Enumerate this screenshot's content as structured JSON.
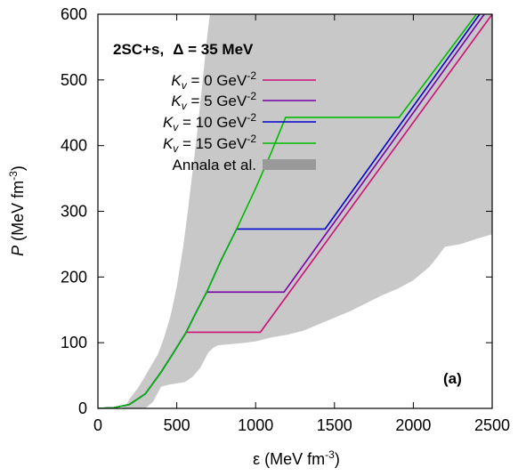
{
  "chart_data": {
    "type": "line",
    "title_model": "2SC+s,",
    "title_delta": "Δ = 35 MeV",
    "panel_label": "(a)",
    "xlabel": "ε (MeV fm",
    "xlabel_sup": "-3",
    "xlabel_close": ")",
    "ylabel_var": "P",
    "ylabel_rest": " (MeV fm",
    "ylabel_sup": "-3",
    "ylabel_close": ")",
    "xlim": [
      0,
      2500
    ],
    "ylim": [
      0,
      600
    ],
    "xticks": [
      "0",
      "500",
      "1000",
      "1500",
      "2000",
      "2500"
    ],
    "yticks": [
      "0",
      "100",
      "200",
      "300",
      "400",
      "500",
      "600"
    ],
    "band": {
      "name": "Annala et al.",
      "color": "#c8c8c8",
      "upper": [
        [
          150,
          0
        ],
        [
          180,
          5
        ],
        [
          200,
          14
        ],
        [
          250,
          30
        ],
        [
          290,
          45
        ],
        [
          330,
          62
        ],
        [
          380,
          82
        ],
        [
          420,
          108
        ],
        [
          460,
          140
        ],
        [
          500,
          185
        ],
        [
          540,
          245
        ],
        [
          570,
          300
        ],
        [
          600,
          360
        ],
        [
          630,
          420
        ],
        [
          660,
          490
        ],
        [
          690,
          560
        ],
        [
          710,
          600
        ]
      ],
      "lower": [
        [
          2500,
          265
        ],
        [
          2400,
          258
        ],
        [
          2300,
          250
        ],
        [
          2200,
          246
        ],
        [
          2150,
          230
        ],
        [
          2100,
          215
        ],
        [
          2000,
          195
        ],
        [
          1900,
          182
        ],
        [
          1800,
          172
        ],
        [
          1700,
          160
        ],
        [
          1600,
          148
        ],
        [
          1500,
          138
        ],
        [
          1400,
          128
        ],
        [
          1300,
          118
        ],
        [
          1200,
          112
        ],
        [
          1100,
          108
        ],
        [
          1000,
          102
        ],
        [
          900,
          99
        ],
        [
          800,
          97
        ],
        [
          760,
          96
        ],
        [
          730,
          92
        ],
        [
          700,
          85
        ],
        [
          650,
          62
        ],
        [
          600,
          48
        ],
        [
          550,
          40
        ],
        [
          500,
          38
        ],
        [
          450,
          36
        ],
        [
          400,
          33
        ],
        [
          350,
          10
        ],
        [
          300,
          0
        ]
      ]
    },
    "series": [
      {
        "name": "K",
        "sub": "v",
        "value": " = 0 GeV",
        "sup": "-2",
        "color": "#cc1177",
        "points": [
          [
            0,
            0
          ],
          [
            100,
            1
          ],
          [
            200,
            6
          ],
          [
            300,
            22
          ],
          [
            400,
            55
          ],
          [
            480,
            85
          ],
          [
            560,
            116
          ],
          [
            1030,
            116
          ],
          [
            2500,
            600
          ]
        ]
      },
      {
        "name": "K",
        "sub": "v",
        "value": " = 5 GeV",
        "sup": "-2",
        "color": "#7700aa",
        "points": [
          [
            0,
            0
          ],
          [
            100,
            1
          ],
          [
            200,
            6
          ],
          [
            300,
            22
          ],
          [
            400,
            55
          ],
          [
            480,
            85
          ],
          [
            560,
            116
          ],
          [
            620,
            145
          ],
          [
            690,
            177
          ],
          [
            1180,
            177
          ],
          [
            2450,
            600
          ]
        ]
      },
      {
        "name": "K",
        "sub": "v",
        "value": " = 10 GeV",
        "sup": "-2",
        "color": "#0000cc",
        "points": [
          [
            0,
            0
          ],
          [
            100,
            1
          ],
          [
            200,
            6
          ],
          [
            300,
            22
          ],
          [
            400,
            55
          ],
          [
            480,
            85
          ],
          [
            560,
            116
          ],
          [
            620,
            145
          ],
          [
            690,
            177
          ],
          [
            780,
            225
          ],
          [
            880,
            273
          ],
          [
            1440,
            273
          ],
          [
            2420,
            600
          ]
        ]
      },
      {
        "name": "K",
        "sub": "v",
        "value": " = 15 GeV",
        "sup": "-2",
        "color": "#00bb00",
        "points": [
          [
            0,
            0
          ],
          [
            100,
            1
          ],
          [
            200,
            6
          ],
          [
            300,
            22
          ],
          [
            400,
            55
          ],
          [
            480,
            85
          ],
          [
            560,
            116
          ],
          [
            620,
            145
          ],
          [
            690,
            177
          ],
          [
            780,
            225
          ],
          [
            880,
            273
          ],
          [
            1000,
            335
          ],
          [
            1100,
            390
          ],
          [
            1190,
            443
          ],
          [
            1910,
            443
          ],
          [
            2400,
            600
          ]
        ]
      }
    ]
  }
}
